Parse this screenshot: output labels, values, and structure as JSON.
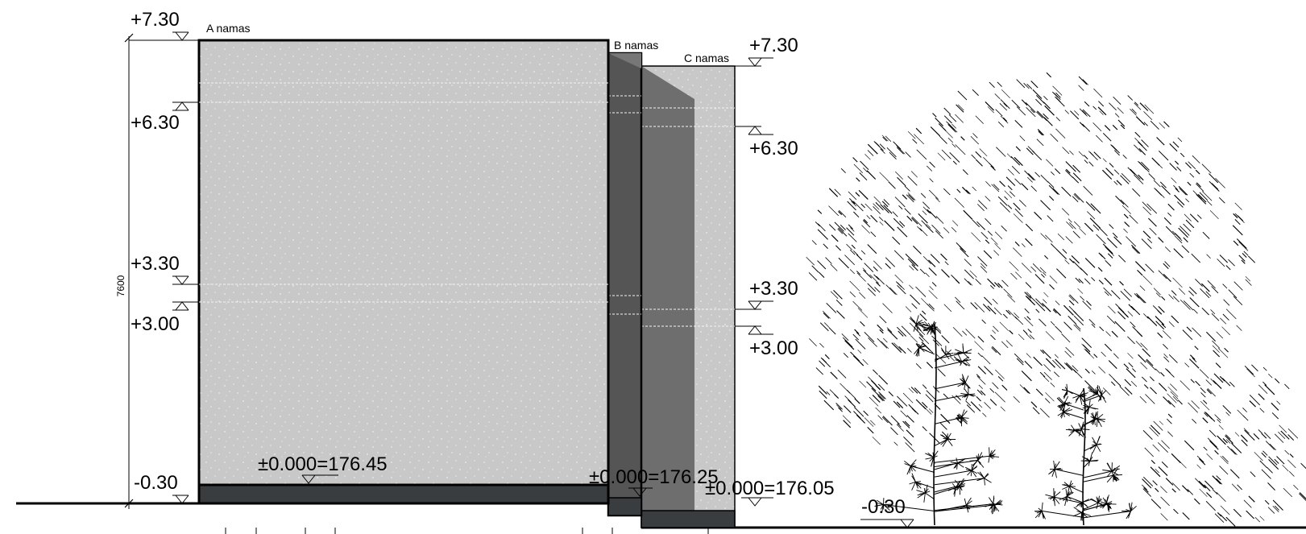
{
  "buildings": {
    "a": {
      "label": "A namas"
    },
    "b": {
      "label": "B namas"
    },
    "c": {
      "label": "C namas"
    }
  },
  "elevations": {
    "a_top": "+7.30",
    "a_630": "+6.30",
    "a_330": "+3.30",
    "a_300": "+3.00",
    "a_ground": "-0.30",
    "c_top": "+7.30",
    "c_630": "+6.30",
    "c_330": "+3.30",
    "c_300": "+3.00",
    "c_ground": "-0.30"
  },
  "datums": {
    "a": "±0.000=176.45",
    "b": "±0.000=176.25",
    "c": "±0.000=176.05"
  },
  "dimension": {
    "total_height": "7600"
  },
  "colors": {
    "facade_light": "#c8c8c8",
    "facade_mid": "#6e6e6e",
    "facade_dark": "#555555",
    "plinth": "#3a3d40",
    "line": "#000000"
  }
}
